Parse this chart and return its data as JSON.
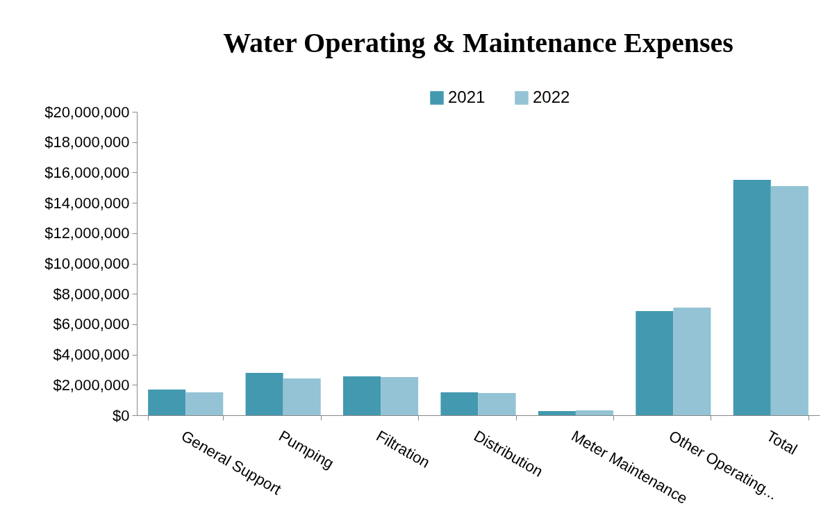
{
  "chart_data": {
    "type": "bar",
    "title": "Water Operating & Maintenance Expenses",
    "categories": [
      "General Support",
      "Pumping",
      "Filtration",
      "Distribution",
      "Meter Maintenance",
      "Other Operating...",
      "Total"
    ],
    "series": [
      {
        "name": "2021",
        "color": "#4299b0",
        "values": [
          1690000,
          2790000,
          2560000,
          1510000,
          270000,
          6860000,
          15510000
        ]
      },
      {
        "name": "2022",
        "color": "#93c3d4",
        "values": [
          1510000,
          2430000,
          2520000,
          1460000,
          320000,
          7090000,
          15100000
        ]
      }
    ],
    "ylim": [
      0,
      20000000
    ],
    "yticks": [
      {
        "value": 0,
        "label": "$0"
      },
      {
        "value": 2000000,
        "label": "$2,000,000"
      },
      {
        "value": 4000000,
        "label": "$4,000,000"
      },
      {
        "value": 6000000,
        "label": "$6,000,000"
      },
      {
        "value": 8000000,
        "label": "$8,000,000"
      },
      {
        "value": 10000000,
        "label": "$10,000,000"
      },
      {
        "value": 12000000,
        "label": "$12,000,000"
      },
      {
        "value": 14000000,
        "label": "$14,000,000"
      },
      {
        "value": 16000000,
        "label": "$16,000,000"
      },
      {
        "value": 18000000,
        "label": "$18,000,000"
      },
      {
        "value": 20000000,
        "label": "$20,000,000"
      }
    ],
    "grid": false,
    "legend": "top"
  }
}
